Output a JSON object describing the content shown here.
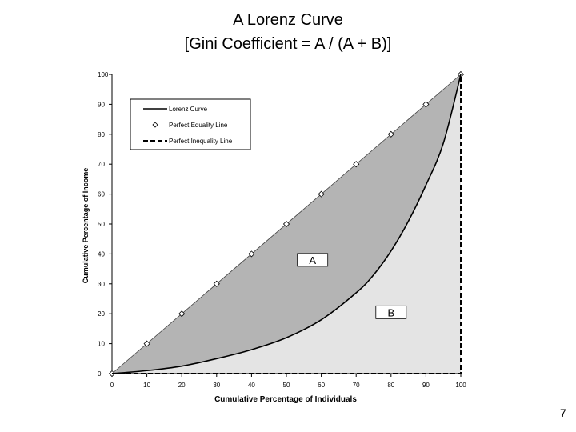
{
  "page": {
    "title": "A Lorenz Curve",
    "subtitle": "[Gini Coefficient = A / (A + B)]",
    "page_number": "7"
  },
  "chart_data": {
    "type": "area",
    "xlabel": "Cumulative Percentage of Individuals",
    "ylabel": "Cumulative Percentage of Income",
    "xlim": [
      0,
      100
    ],
    "ylim": [
      0,
      100
    ],
    "x_ticks": [
      "0",
      "10",
      "20",
      "30",
      "40",
      "50",
      "60",
      "70",
      "80",
      "90",
      "100"
    ],
    "y_ticks": [
      "0",
      "10",
      "20",
      "30",
      "40",
      "50",
      "60",
      "70",
      "80",
      "90",
      "100"
    ],
    "legend_position": "top-left",
    "series": [
      {
        "name": "Lorenz Curve",
        "style": "solid",
        "x": [
          0,
          10,
          20,
          30,
          40,
          50,
          60,
          70,
          75,
          80,
          85,
          90,
          95,
          100
        ],
        "y": [
          0,
          1,
          2.5,
          5,
          8,
          12,
          18,
          27,
          33,
          41,
          51,
          63,
          77,
          100
        ]
      },
      {
        "name": "Perfect Equality Line",
        "style": "markers",
        "x": [
          0,
          10,
          20,
          30,
          40,
          50,
          60,
          70,
          80,
          90,
          100
        ],
        "y": [
          0,
          10,
          20,
          30,
          40,
          50,
          60,
          70,
          80,
          90,
          100
        ]
      },
      {
        "name": "Perfect Inequality Line",
        "style": "dashed",
        "x": [
          0,
          100,
          100
        ],
        "y": [
          0,
          0,
          100
        ]
      }
    ],
    "regions": [
      {
        "label": "A",
        "color": "#b4b4b4"
      },
      {
        "label": "B",
        "color": "#e4e4e4"
      }
    ]
  }
}
